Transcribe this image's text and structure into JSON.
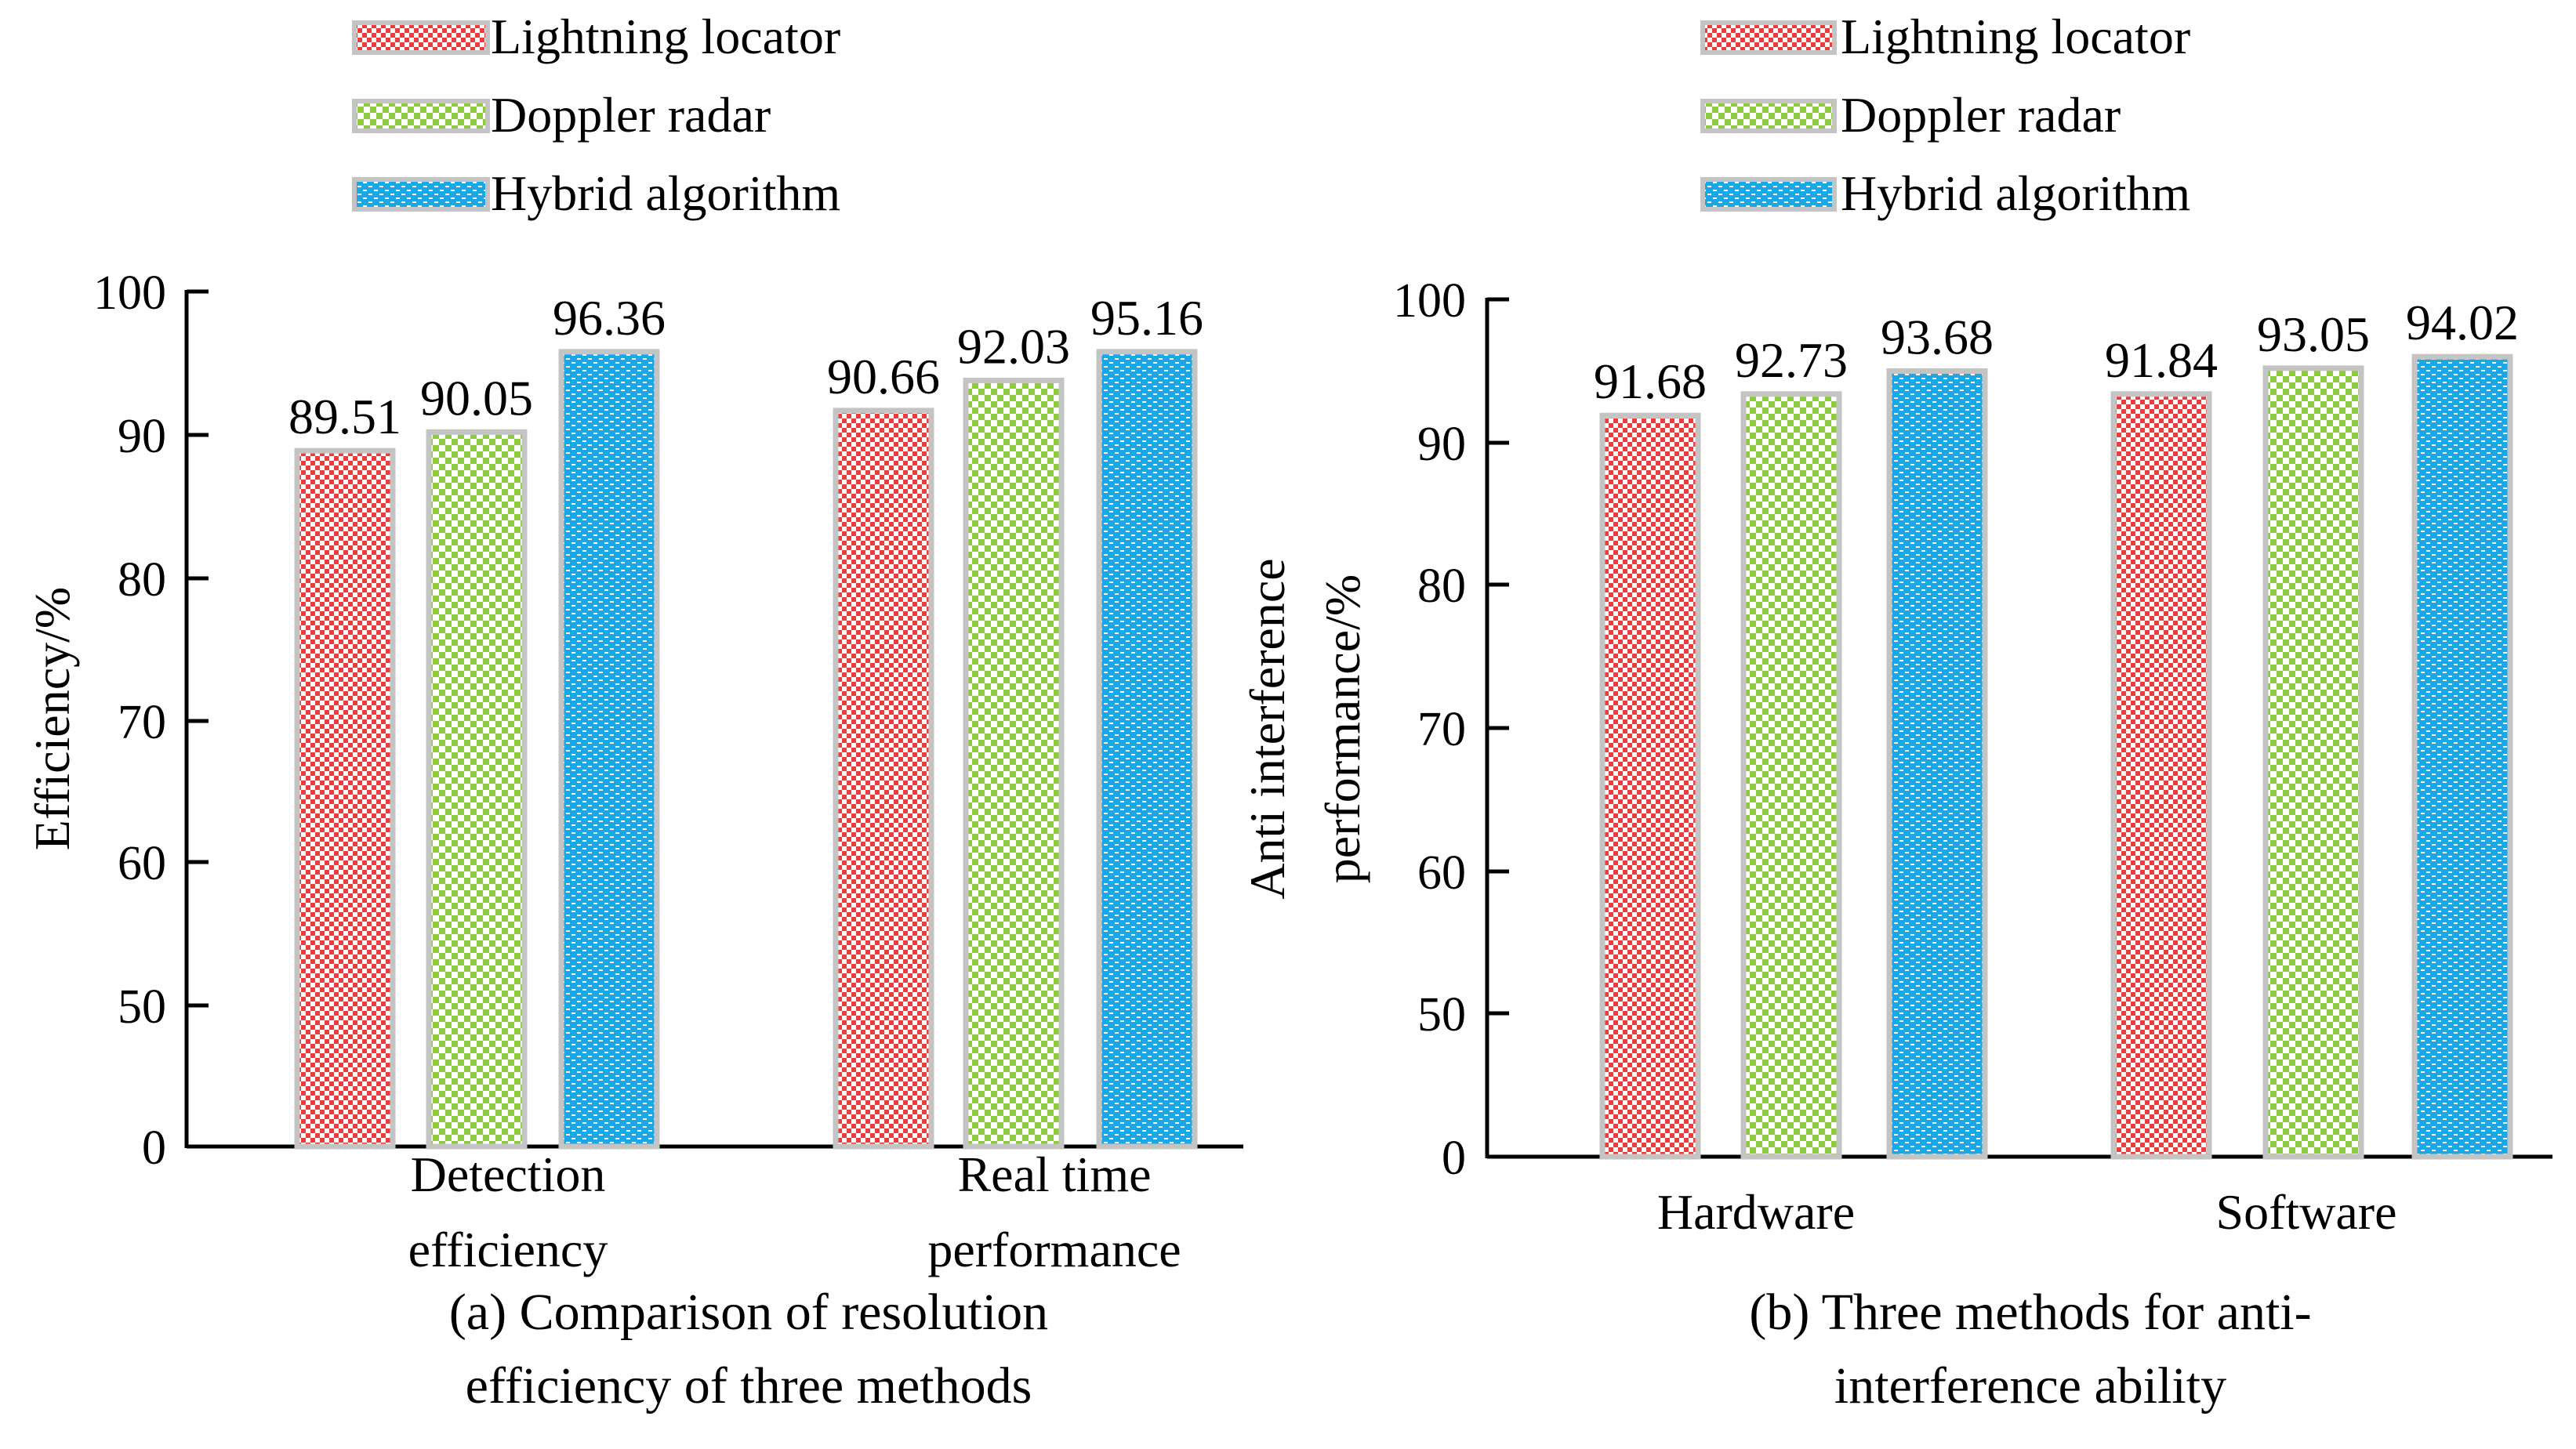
{
  "colors": {
    "lightning": "#ee3b3b",
    "doppler": "#8ccc3c",
    "hybrid": "#1aa7e6",
    "bar_border": "#c4c4c4",
    "axis": "#000000"
  },
  "legend": [
    {
      "label": "Lightning locator",
      "series": "lightning"
    },
    {
      "label": "Doppler radar",
      "series": "doppler"
    },
    {
      "label": "Hybrid algorithm",
      "series": "hybrid"
    }
  ],
  "chart_data": [
    {
      "type": "bar",
      "title": "(a) Comparison of resolution efficiency of three methods",
      "caption_lines": [
        "(a) Comparison of resolution",
        "efficiency of three methods"
      ],
      "ylabel": "Efficiency/%",
      "ylabel_lines": [
        "Efficiency/%"
      ],
      "yticks": [
        "100",
        "90",
        "80",
        "70",
        "60",
        "50",
        "0"
      ],
      "categories": [
        "Detection efficiency",
        "Real time performance"
      ],
      "category_lines": [
        [
          "Detection",
          "efficiency"
        ],
        [
          "Real time",
          "performance"
        ]
      ],
      "series": [
        {
          "name": "Lightning locator",
          "key": "lightning",
          "values": [
            89.51,
            90.66
          ]
        },
        {
          "name": "Doppler radar",
          "key": "doppler",
          "values": [
            90.05,
            92.03
          ]
        },
        {
          "name": "Hybrid algorithm",
          "key": "hybrid",
          "values": [
            96.36,
            95.16
          ]
        }
      ],
      "bar_heights_scale_values": [
        [
          88.9,
          91.7
        ],
        [
          90.2,
          93.8
        ],
        [
          95.8,
          95.8
        ]
      ],
      "value_labels": [
        [
          "89.51",
          "90.66"
        ],
        [
          "90.05",
          "92.03"
        ],
        [
          "96.36",
          "95.16"
        ]
      ],
      "axis_note": "broken axis: ticks 0,50,60,70,80,90,100 evenly spaced"
    },
    {
      "type": "bar",
      "title": "(b) Three methods for anti-interference ability",
      "caption_lines": [
        "(b) Three methods for anti-",
        "interference ability"
      ],
      "ylabel": "Anti interference performance/%",
      "ylabel_lines": [
        "Anti interference",
        "performance/%"
      ],
      "yticks": [
        "100",
        "90",
        "80",
        "70",
        "60",
        "50",
        "0"
      ],
      "categories": [
        "Hardware",
        "Software"
      ],
      "category_lines": [
        [
          "Hardware"
        ],
        [
          "Software"
        ]
      ],
      "series": [
        {
          "name": "Lightning locator",
          "key": "lightning",
          "values": [
            91.68,
            91.84
          ]
        },
        {
          "name": "Doppler radar",
          "key": "doppler",
          "values": [
            92.73,
            93.05
          ]
        },
        {
          "name": "Hybrid algorithm",
          "key": "hybrid",
          "values": [
            93.68,
            94.02
          ]
        }
      ],
      "bar_heights_scale_values": [
        [
          91.9,
          93.4
        ],
        [
          93.4,
          95.2
        ],
        [
          95.0,
          96.0
        ]
      ],
      "value_labels": [
        [
          "91.68",
          "91.84"
        ],
        [
          "92.73",
          "93.05"
        ],
        [
          "93.68",
          "94.02"
        ]
      ],
      "axis_note": "broken axis: ticks 0,50,60,70,80,90,100 evenly spaced"
    }
  ]
}
